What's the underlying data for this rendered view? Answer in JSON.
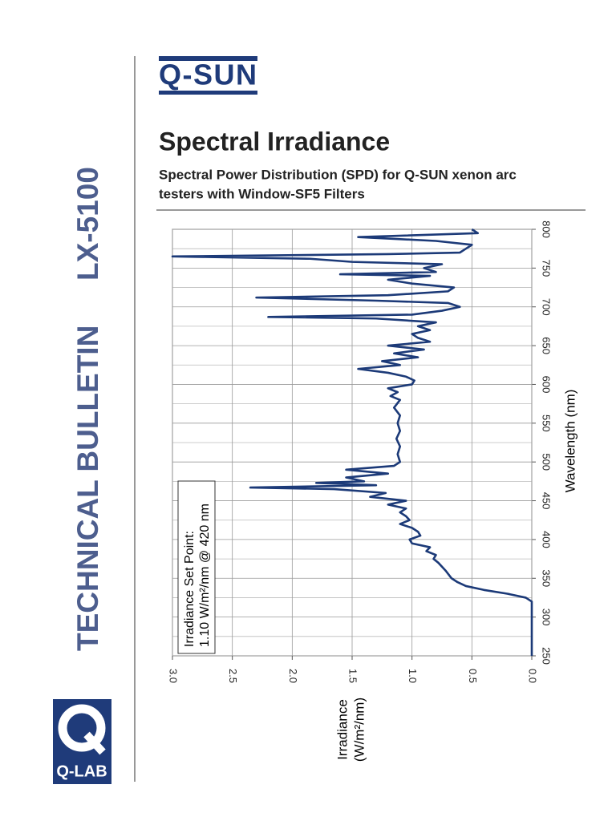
{
  "sidebar": {
    "title": "TECHNICAL BULLETIN",
    "code": "LX-5100"
  },
  "header": {
    "logo": "Q-SUN",
    "title": "Spectral Irradiance",
    "subtitle_lines": [
      "Spectral Power Distribution (SPD) for Q-SUN xenon arc",
      "testers with Window-SF5 Filters"
    ]
  },
  "footer": {
    "logo": "Q-LAB"
  },
  "chart_data": {
    "type": "line",
    "color": "#1c3a78",
    "x_label": "Wavelength (nm)",
    "y_label_lines": [
      "Irradiance",
      "(W/m²/nm)"
    ],
    "annotation_lines": [
      "Irradiance Set Point:",
      "1.10 W/m²/nm @ 420 nm"
    ],
    "xlim": [
      250,
      800
    ],
    "xticks": [
      250,
      300,
      350,
      400,
      450,
      500,
      550,
      600,
      650,
      700,
      750,
      800
    ],
    "minor_xticks": [
      275,
      325,
      375,
      425,
      475,
      525,
      575,
      625,
      675,
      725,
      775
    ],
    "ylim": [
      0,
      3
    ],
    "yticks": [
      {
        "value": 0,
        "label": "0.0"
      },
      {
        "value": 0.5,
        "label": "0.5"
      },
      {
        "value": 1,
        "label": "1.0"
      },
      {
        "value": 1.5,
        "label": "1.5"
      },
      {
        "value": 2,
        "label": "2.0"
      },
      {
        "value": 2.5,
        "label": "2.5"
      },
      {
        "value": 3,
        "label": "3.0"
      }
    ],
    "grid": true,
    "x": [
      250,
      260,
      270,
      280,
      290,
      300,
      310,
      320,
      325,
      330,
      335,
      340,
      345,
      350,
      360,
      370,
      375,
      380,
      385,
      390,
      395,
      400,
      405,
      410,
      415,
      420,
      425,
      430,
      435,
      440,
      445,
      450,
      455,
      460,
      465,
      467,
      470,
      473,
      475,
      480,
      485,
      490,
      495,
      500,
      510,
      520,
      530,
      540,
      550,
      560,
      570,
      580,
      585,
      590,
      595,
      600,
      605,
      610,
      615,
      620,
      625,
      630,
      635,
      640,
      645,
      650,
      655,
      660,
      665,
      670,
      675,
      680,
      685,
      687,
      690,
      695,
      700,
      705,
      708,
      712,
      715,
      720,
      725,
      730,
      735,
      740,
      742,
      745,
      750,
      755,
      758,
      762,
      765,
      768,
      770,
      775,
      780,
      785,
      790,
      795,
      800
    ],
    "values": [
      0,
      0,
      0,
      0,
      0,
      0,
      0,
      0,
      0.05,
      0.2,
      0.4,
      0.55,
      0.62,
      0.67,
      0.72,
      0.78,
      0.82,
      0.8,
      0.88,
      0.85,
      1.0,
      1.02,
      0.93,
      0.95,
      1.0,
      1.1,
      1.02,
      1.05,
      1.1,
      1.05,
      1.2,
      1.05,
      1.35,
      1.22,
      1.65,
      2.35,
      1.3,
      1.8,
      1.4,
      1.55,
      1.2,
      1.55,
      1.15,
      1.1,
      1.12,
      1.1,
      1.13,
      1.1,
      1.12,
      1.1,
      1.15,
      1.1,
      1.18,
      1.12,
      1.2,
      1.0,
      0.98,
      1.05,
      1.2,
      1.45,
      1.1,
      1.25,
      0.95,
      1.15,
      0.9,
      1.2,
      0.85,
      0.95,
      1.0,
      0.85,
      0.95,
      0.8,
      1.3,
      2.2,
      1.0,
      0.75,
      0.6,
      0.7,
      1.3,
      2.3,
      1.2,
      0.7,
      0.65,
      1.0,
      1.2,
      0.85,
      1.6,
      0.8,
      0.9,
      0.75,
      1.5,
      1.85,
      3.0,
      1.2,
      0.6,
      0.55,
      0.5,
      0.8,
      1.45,
      0.45,
      0.5
    ]
  }
}
